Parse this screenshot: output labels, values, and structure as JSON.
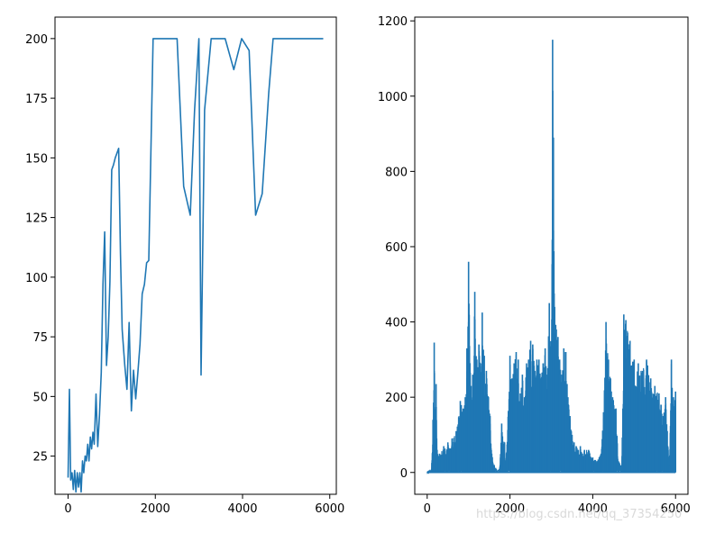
{
  "watermark": "https://blog.csdn.net/qq_37354250",
  "colors": {
    "series": "#1f77b4",
    "axes": "#000000",
    "background": "#ffffff"
  },
  "chart_data": [
    {
      "type": "line",
      "title": "",
      "xlabel": "",
      "ylabel": "",
      "xlim": [
        -300,
        6150
      ],
      "ylim": [
        9,
        209
      ],
      "grid": false,
      "xticks": [
        0,
        2000,
        4000,
        6000
      ],
      "yticks": [
        25,
        50,
        75,
        100,
        125,
        150,
        175,
        200
      ],
      "series": [
        {
          "x": [
            0,
            30,
            60,
            90,
            120,
            150,
            180,
            210,
            240,
            270,
            300,
            330,
            360,
            390,
            420,
            450,
            480,
            510,
            540,
            570,
            600,
            640,
            680,
            720,
            760,
            800,
            840,
            880,
            920,
            960,
            1000,
            1040,
            1080,
            1120,
            1160,
            1200,
            1240,
            1300,
            1350,
            1400,
            1450,
            1500,
            1550,
            1600,
            1650,
            1700,
            1750,
            1800,
            1850,
            1950,
            2100,
            2200,
            2300,
            2400,
            2500,
            2650,
            2800,
            2900,
            3000,
            3050,
            3130,
            3280,
            3380,
            3500,
            3600,
            3800,
            3980,
            4150,
            4300,
            4450,
            4600,
            4700,
            5000,
            5500,
            5850
          ],
          "values": [
            16,
            53,
            15,
            18,
            11,
            19,
            10,
            18,
            12,
            18,
            10,
            23,
            18,
            25,
            23,
            30,
            23,
            33,
            28,
            35,
            30,
            51,
            29,
            42,
            60,
            97,
            119,
            63,
            75,
            98,
            145,
            147,
            150,
            152,
            154,
            110,
            78,
            63,
            53,
            81,
            44,
            61,
            49,
            60,
            72,
            93,
            97,
            106,
            107,
            200,
            200,
            200,
            200,
            200,
            200,
            138,
            126,
            170,
            200,
            59,
            170,
            200,
            200,
            200,
            200,
            187,
            200,
            195,
            126,
            135,
            177,
            200,
            200,
            200,
            200
          ]
        }
      ]
    },
    {
      "type": "line",
      "title": "",
      "xlabel": "",
      "ylabel": "",
      "xlim": [
        -300,
        6300
      ],
      "ylim": [
        -58,
        1210
      ],
      "grid": false,
      "xticks": [
        0,
        2000,
        4000,
        6000
      ],
      "yticks": [
        0,
        200,
        400,
        600,
        800,
        1000,
        1200
      ],
      "series": [
        {
          "x": [
            0,
            100,
            140,
            170,
            200,
            215,
            240,
            300,
            400,
            500,
            560,
            600,
            700,
            800,
            870,
            920,
            960,
            1000,
            1060,
            1100,
            1150,
            1200,
            1250,
            1290,
            1330,
            1380,
            1430,
            1480,
            1520,
            1560,
            1620,
            1700,
            1750,
            1800,
            1870,
            1900,
            2000,
            2050,
            2100,
            2150,
            2200,
            2250,
            2300,
            2350,
            2400,
            2450,
            2500,
            2550,
            2600,
            2650,
            2700,
            2750,
            2800,
            2850,
            2900,
            2950,
            3000,
            3030,
            3050,
            3080,
            3120,
            3160,
            3200,
            3250,
            3300,
            3350,
            3400,
            3450,
            3500,
            3550,
            3600,
            3650,
            3700,
            3750,
            3800,
            3900,
            4000,
            4100,
            4200,
            4260,
            4320,
            4380,
            4430,
            4480,
            4560,
            4620,
            4700,
            4750,
            4800,
            4900,
            5000,
            5100,
            5200,
            5300,
            5400,
            5500,
            5600,
            5650,
            5700,
            5760,
            5800,
            5850,
            5900,
            5950,
            6000
          ],
          "values": [
            0,
            5,
            140,
            345,
            120,
            235,
            60,
            50,
            70,
            80,
            60,
            90,
            110,
            190,
            170,
            200,
            330,
            560,
            230,
            260,
            480,
            300,
            340,
            290,
            425,
            310,
            270,
            200,
            150,
            50,
            20,
            5,
            10,
            130,
            80,
            15,
            310,
            250,
            290,
            320,
            300,
            210,
            260,
            200,
            290,
            300,
            350,
            340,
            270,
            300,
            300,
            250,
            290,
            330,
            260,
            450,
            300,
            1150,
            890,
            440,
            380,
            360,
            300,
            260,
            330,
            320,
            200,
            150,
            100,
            80,
            70,
            60,
            70,
            50,
            60,
            60,
            40,
            30,
            50,
            160,
            400,
            300,
            250,
            200,
            170,
            30,
            20,
            420,
            405,
            350,
            300,
            290,
            270,
            300,
            250,
            230,
            210,
            180,
            150,
            200,
            110,
            20,
            300,
            200,
            215
          ]
        }
      ]
    }
  ]
}
